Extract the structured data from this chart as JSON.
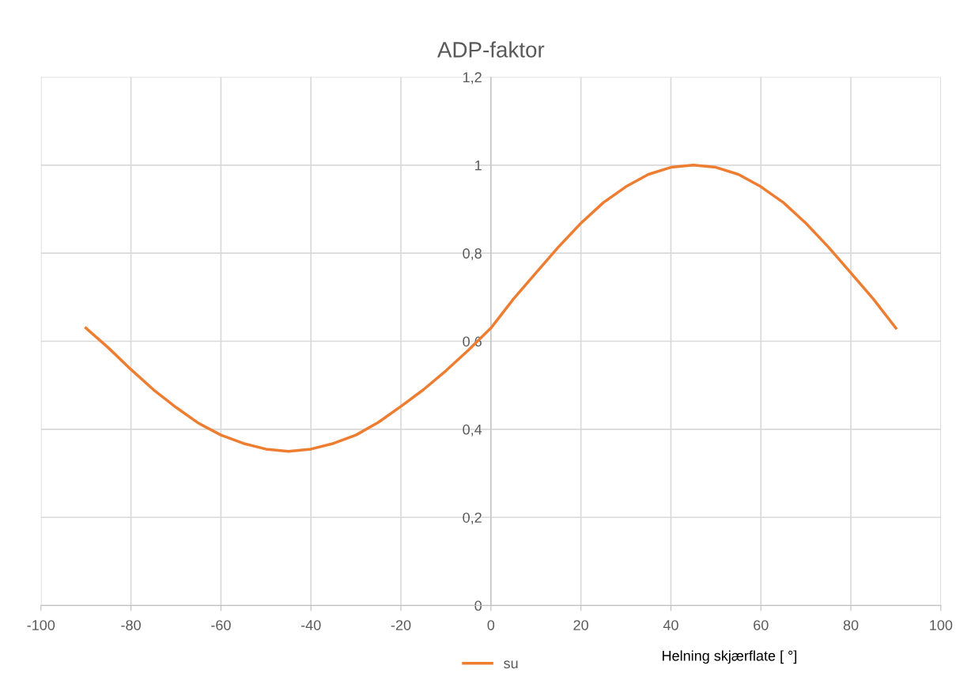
{
  "chart_data": {
    "type": "line",
    "title": "ADP-faktor",
    "xlabel": "Helning skjærflate [ °]",
    "x": [
      -90,
      -85,
      -80,
      -75,
      -70,
      -65,
      -60,
      -55,
      -50,
      -45,
      -40,
      -35,
      -30,
      -25,
      -20,
      -15,
      -10,
      -5,
      0,
      5,
      10,
      15,
      20,
      25,
      30,
      35,
      40,
      45,
      50,
      55,
      60,
      65,
      70,
      75,
      80,
      85,
      90
    ],
    "series": [
      {
        "name": "su",
        "color": "#ed7d31",
        "values": [
          0.63,
          0.585,
          0.536,
          0.49,
          0.45,
          0.414,
          0.387,
          0.368,
          0.355,
          0.35,
          0.355,
          0.368,
          0.387,
          0.416,
          0.452,
          0.49,
          0.533,
          0.58,
          0.63,
          0.696,
          0.755,
          0.814,
          0.868,
          0.915,
          0.951,
          0.979,
          0.995,
          1.0,
          0.995,
          0.979,
          0.951,
          0.915,
          0.868,
          0.814,
          0.755,
          0.696,
          0.63
        ]
      }
    ],
    "xlim": [
      -100,
      100
    ],
    "xticks": [
      -100,
      -80,
      -60,
      -40,
      -20,
      0,
      20,
      40,
      60,
      80,
      100
    ],
    "ylim": [
      0,
      1.2
    ],
    "yticks": [
      {
        "value": 0,
        "label": "0"
      },
      {
        "value": 0.2,
        "label": "0,2"
      },
      {
        "value": 0.4,
        "label": "0,4"
      },
      {
        "value": 0.6,
        "label": "0,6"
      },
      {
        "value": 0.8,
        "label": "0,8"
      },
      {
        "value": 1,
        "label": "1"
      },
      {
        "value": 1.2,
        "label": "1,2"
      }
    ],
    "grid": true,
    "legend": "bottom",
    "marker": "none",
    "line_style": "solid"
  }
}
